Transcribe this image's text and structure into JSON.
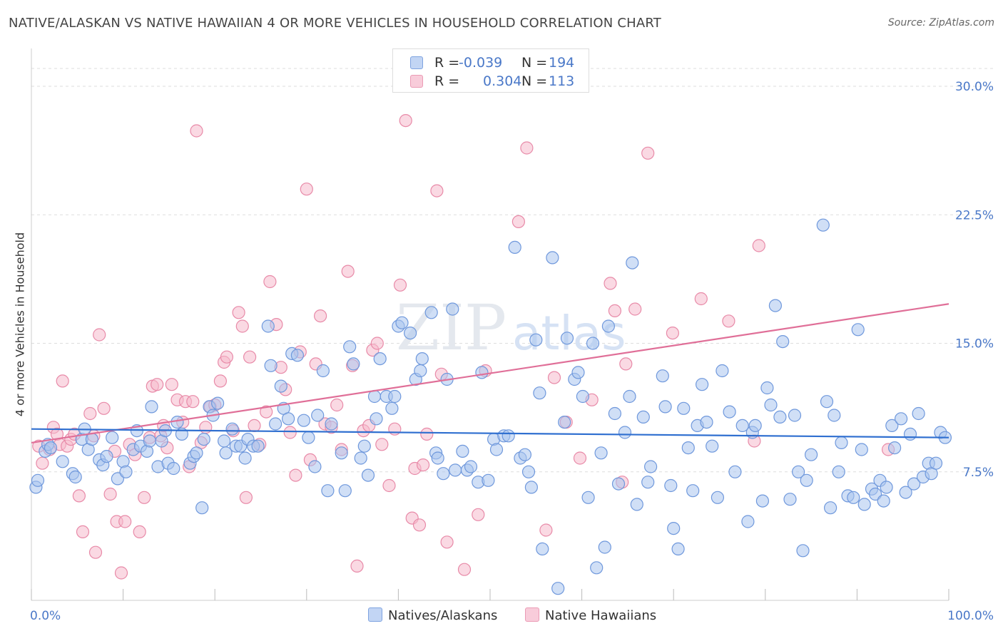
{
  "title": "NATIVE/ALASKAN VS NATIVE HAWAIIAN 4 OR MORE VEHICLES IN HOUSEHOLD CORRELATION CHART",
  "source": "Source: ZipAtlas.com",
  "watermark": "ZIPatlas",
  "colors": {
    "blue_fill": "#aac4ef",
    "blue_stroke": "#6f98dc",
    "blue_line": "#2f6fd0",
    "pink_fill": "#f5b9cc",
    "pink_stroke": "#e88aa8",
    "pink_line": "#e06f98",
    "tick_text": "#4a78c8",
    "grid": "#dddddd"
  },
  "legend": {
    "rows": [
      {
        "r_label": "R =",
        "r_value": "-0.039",
        "n_label": "N =",
        "n_value": "194"
      },
      {
        "r_label": "R =",
        "r_value": "0.304",
        "n_label": "N =",
        "n_value": "113"
      }
    ]
  },
  "bottom_legend": [
    "Natives/Alaskans",
    "Native Hawaiians"
  ],
  "chart_data": {
    "type": "scatter",
    "title": "NATIVE/ALASKAN VS NATIVE HAWAIIAN 4 OR MORE VEHICLES IN HOUSEHOLD CORRELATION CHART",
    "xlabel": "",
    "ylabel": "4 or more Vehicles in Household",
    "xlim": [
      0,
      100
    ],
    "ylim": [
      0,
      31
    ],
    "x_tick_labels": [
      "0.0%",
      "100.0%"
    ],
    "y_ticks": [
      7.5,
      15.0,
      22.5,
      30.0
    ],
    "y_tick_labels": [
      "7.5%",
      "15.0%",
      "22.5%",
      "30.0%"
    ],
    "grid": true,
    "legend_position": "top-center",
    "series": [
      {
        "name": "Natives/Alaskans",
        "r": -0.039,
        "n": 194,
        "trend": {
          "x": [
            0,
            100
          ],
          "y": [
            10.0,
            9.5
          ]
        },
        "points": [
          [
            0.5,
            6.6
          ],
          [
            0.7,
            7.0
          ],
          [
            1.5,
            8.7
          ],
          [
            1.8,
            9.1
          ],
          [
            2.1,
            8.9
          ],
          [
            3.4,
            8.1
          ],
          [
            4.5,
            7.4
          ],
          [
            4.8,
            7.2
          ],
          [
            5.5,
            9.4
          ],
          [
            5.8,
            10.0
          ],
          [
            6.2,
            8.8
          ],
          [
            6.6,
            9.4
          ],
          [
            7.4,
            8.2
          ],
          [
            7.8,
            7.9
          ],
          [
            8.2,
            8.4
          ],
          [
            8.8,
            9.5
          ],
          [
            9.4,
            7.1
          ],
          [
            10.0,
            8.1
          ],
          [
            10.3,
            7.5
          ],
          [
            11.1,
            8.8
          ],
          [
            11.5,
            9.9
          ],
          [
            11.9,
            9.0
          ],
          [
            12.6,
            8.7
          ],
          [
            12.9,
            9.3
          ],
          [
            13.1,
            11.3
          ],
          [
            13.8,
            7.8
          ],
          [
            14.2,
            9.3
          ],
          [
            14.6,
            9.9
          ],
          [
            14.9,
            8.0
          ],
          [
            15.5,
            7.7
          ],
          [
            15.9,
            10.4
          ],
          [
            16.4,
            9.7
          ],
          [
            17.3,
            8.0
          ],
          [
            17.7,
            8.4
          ],
          [
            18.0,
            8.6
          ],
          [
            18.6,
            5.4
          ],
          [
            18.8,
            9.4
          ],
          [
            19.4,
            11.3
          ],
          [
            19.8,
            10.8
          ],
          [
            20.3,
            11.5
          ],
          [
            21.0,
            9.3
          ],
          [
            21.2,
            8.6
          ],
          [
            21.9,
            10.0
          ],
          [
            22.3,
            9.0
          ],
          [
            22.8,
            9.0
          ],
          [
            23.3,
            8.3
          ],
          [
            23.6,
            9.4
          ],
          [
            24.2,
            9.0
          ],
          [
            24.7,
            9.0
          ],
          [
            25.8,
            16.0
          ],
          [
            26.1,
            13.7
          ],
          [
            26.6,
            10.3
          ],
          [
            27.2,
            12.5
          ],
          [
            27.5,
            11.2
          ],
          [
            28.0,
            10.6
          ],
          [
            28.4,
            14.4
          ],
          [
            29.0,
            14.3
          ],
          [
            29.7,
            10.5
          ],
          [
            30.2,
            9.5
          ],
          [
            30.9,
            7.8
          ],
          [
            31.2,
            10.8
          ],
          [
            31.8,
            13.4
          ],
          [
            32.3,
            6.4
          ],
          [
            32.7,
            10.3
          ],
          [
            33.8,
            8.6
          ],
          [
            34.2,
            6.4
          ],
          [
            34.7,
            14.8
          ],
          [
            35.1,
            13.8
          ],
          [
            35.9,
            8.3
          ],
          [
            36.3,
            9.0
          ],
          [
            36.7,
            7.3
          ],
          [
            37.4,
            11.9
          ],
          [
            37.6,
            10.6
          ],
          [
            38.0,
            14.1
          ],
          [
            38.7,
            11.9
          ],
          [
            39.3,
            11.2
          ],
          [
            39.6,
            11.9
          ],
          [
            40.0,
            16.0
          ],
          [
            40.4,
            16.2
          ],
          [
            41.3,
            15.6
          ],
          [
            41.9,
            12.9
          ],
          [
            42.4,
            13.4
          ],
          [
            42.6,
            14.1
          ],
          [
            43.6,
            16.8
          ],
          [
            44.1,
            8.6
          ],
          [
            44.3,
            8.3
          ],
          [
            44.9,
            7.4
          ],
          [
            45.3,
            12.9
          ],
          [
            45.9,
            17.0
          ],
          [
            46.2,
            7.6
          ],
          [
            47.0,
            8.7
          ],
          [
            47.5,
            7.6
          ],
          [
            47.9,
            7.8
          ],
          [
            48.7,
            6.9
          ],
          [
            49.1,
            13.3
          ],
          [
            49.8,
            7.0
          ],
          [
            50.4,
            9.4
          ],
          [
            50.7,
            8.8
          ],
          [
            51.5,
            9.6
          ],
          [
            52.0,
            9.6
          ],
          [
            52.7,
            20.6
          ],
          [
            53.3,
            8.3
          ],
          [
            53.8,
            8.5
          ],
          [
            54.2,
            7.5
          ],
          [
            54.5,
            6.6
          ],
          [
            55.0,
            15.2
          ],
          [
            55.4,
            12.1
          ],
          [
            55.7,
            3.0
          ],
          [
            56.8,
            20.0
          ],
          [
            57.4,
            0.7
          ],
          [
            58.1,
            10.4
          ],
          [
            58.4,
            15.3
          ],
          [
            59.2,
            12.9
          ],
          [
            59.6,
            13.3
          ],
          [
            60.1,
            11.9
          ],
          [
            60.7,
            6.0
          ],
          [
            61.2,
            15.0
          ],
          [
            61.6,
            1.9
          ],
          [
            62.1,
            8.6
          ],
          [
            62.5,
            3.1
          ],
          [
            62.9,
            16.0
          ],
          [
            63.6,
            10.9
          ],
          [
            64.0,
            6.8
          ],
          [
            64.7,
            9.8
          ],
          [
            65.2,
            11.9
          ],
          [
            65.5,
            19.7
          ],
          [
            66.0,
            5.6
          ],
          [
            66.7,
            10.7
          ],
          [
            67.2,
            6.9
          ],
          [
            67.5,
            7.8
          ],
          [
            68.8,
            13.1
          ],
          [
            69.1,
            11.3
          ],
          [
            69.7,
            6.7
          ],
          [
            70.0,
            4.2
          ],
          [
            70.5,
            3.0
          ],
          [
            71.1,
            11.2
          ],
          [
            71.6,
            8.9
          ],
          [
            72.1,
            6.4
          ],
          [
            72.6,
            10.2
          ],
          [
            73.1,
            12.6
          ],
          [
            73.6,
            10.4
          ],
          [
            74.2,
            9.0
          ],
          [
            74.8,
            6.0
          ],
          [
            75.3,
            13.4
          ],
          [
            76.1,
            11.0
          ],
          [
            76.7,
            7.5
          ],
          [
            77.5,
            10.2
          ],
          [
            78.1,
            4.6
          ],
          [
            78.6,
            9.8
          ],
          [
            78.9,
            10.2
          ],
          [
            79.7,
            5.8
          ],
          [
            80.2,
            12.4
          ],
          [
            80.6,
            11.4
          ],
          [
            81.1,
            17.2
          ],
          [
            81.6,
            10.7
          ],
          [
            81.9,
            15.1
          ],
          [
            82.7,
            5.9
          ],
          [
            83.2,
            10.8
          ],
          [
            83.6,
            7.5
          ],
          [
            84.1,
            2.9
          ],
          [
            84.5,
            7.0
          ],
          [
            85.0,
            8.5
          ],
          [
            86.3,
            21.9
          ],
          [
            86.7,
            11.6
          ],
          [
            87.1,
            5.4
          ],
          [
            87.5,
            10.8
          ],
          [
            88.0,
            7.5
          ],
          [
            88.3,
            9.2
          ],
          [
            89.0,
            6.1
          ],
          [
            89.6,
            6.0
          ],
          [
            90.1,
            15.8
          ],
          [
            90.5,
            8.8
          ],
          [
            90.8,
            5.6
          ],
          [
            91.6,
            6.5
          ],
          [
            92.0,
            6.2
          ],
          [
            92.5,
            7.0
          ],
          [
            92.9,
            5.8
          ],
          [
            93.2,
            6.6
          ],
          [
            93.8,
            10.2
          ],
          [
            94.1,
            8.9
          ],
          [
            94.8,
            10.6
          ],
          [
            95.3,
            6.3
          ],
          [
            95.8,
            9.7
          ],
          [
            96.2,
            6.8
          ],
          [
            96.7,
            10.9
          ],
          [
            97.2,
            7.2
          ],
          [
            97.8,
            8.0
          ],
          [
            98.1,
            7.4
          ],
          [
            98.6,
            8.0
          ],
          [
            99.1,
            9.8
          ],
          [
            99.6,
            9.5
          ]
        ]
      },
      {
        "name": "Native Hawaiians",
        "r": 0.304,
        "n": 113,
        "trend": {
          "x": [
            0,
            100
          ],
          "y": [
            9.2,
            17.3
          ]
        },
        "points": [
          [
            0.8,
            9.0
          ],
          [
            1.2,
            8.0
          ],
          [
            2.0,
            8.8
          ],
          [
            2.4,
            10.1
          ],
          [
            2.8,
            9.7
          ],
          [
            3.1,
            9.1
          ],
          [
            3.4,
            12.8
          ],
          [
            3.9,
            9.0
          ],
          [
            4.3,
            9.4
          ],
          [
            4.7,
            9.7
          ],
          [
            5.2,
            6.1
          ],
          [
            5.6,
            4.0
          ],
          [
            6.4,
            10.9
          ],
          [
            6.8,
            9.6
          ],
          [
            7.0,
            2.8
          ],
          [
            7.4,
            15.5
          ],
          [
            7.9,
            11.2
          ],
          [
            8.6,
            6.2
          ],
          [
            9.1,
            8.7
          ],
          [
            9.3,
            4.6
          ],
          [
            9.8,
            1.6
          ],
          [
            10.2,
            4.6
          ],
          [
            10.7,
            9.1
          ],
          [
            11.3,
            8.5
          ],
          [
            11.8,
            4.0
          ],
          [
            12.3,
            6.0
          ],
          [
            12.9,
            9.5
          ],
          [
            13.2,
            12.5
          ],
          [
            13.7,
            12.6
          ],
          [
            14.1,
            9.6
          ],
          [
            14.4,
            10.2
          ],
          [
            14.8,
            8.9
          ],
          [
            15.3,
            12.6
          ],
          [
            15.9,
            11.7
          ],
          [
            16.5,
            10.4
          ],
          [
            16.8,
            11.6
          ],
          [
            17.2,
            7.8
          ],
          [
            17.6,
            11.6
          ],
          [
            18.0,
            27.4
          ],
          [
            18.5,
            9.2
          ],
          [
            19.0,
            10.1
          ],
          [
            19.5,
            11.3
          ],
          [
            20.0,
            11.4
          ],
          [
            20.6,
            12.8
          ],
          [
            21.0,
            13.9
          ],
          [
            21.3,
            14.2
          ],
          [
            22.0,
            9.9
          ],
          [
            22.6,
            16.8
          ],
          [
            23.0,
            16.0
          ],
          [
            23.4,
            6.0
          ],
          [
            23.8,
            14.2
          ],
          [
            24.3,
            10.2
          ],
          [
            24.9,
            9.1
          ],
          [
            25.6,
            11.0
          ],
          [
            26.0,
            18.6
          ],
          [
            26.7,
            16.1
          ],
          [
            27.2,
            13.6
          ],
          [
            27.7,
            12.3
          ],
          [
            28.2,
            9.8
          ],
          [
            28.8,
            7.3
          ],
          [
            29.3,
            14.5
          ],
          [
            30.0,
            24.0
          ],
          [
            30.4,
            8.2
          ],
          [
            31.0,
            13.8
          ],
          [
            31.5,
            16.6
          ],
          [
            32.0,
            10.3
          ],
          [
            32.7,
            10.1
          ],
          [
            33.3,
            11.4
          ],
          [
            33.8,
            8.8
          ],
          [
            34.5,
            19.2
          ],
          [
            35.0,
            13.7
          ],
          [
            35.5,
            2.0
          ],
          [
            36.2,
            9.9
          ],
          [
            36.8,
            10.2
          ],
          [
            37.2,
            14.6
          ],
          [
            37.7,
            15.0
          ],
          [
            38.2,
            9.1
          ],
          [
            39.0,
            6.7
          ],
          [
            39.6,
            10.0
          ],
          [
            40.2,
            18.4
          ],
          [
            40.8,
            28.0
          ],
          [
            41.5,
            4.8
          ],
          [
            41.8,
            7.7
          ],
          [
            42.3,
            4.4
          ],
          [
            42.7,
            7.9
          ],
          [
            43.1,
            9.7
          ],
          [
            44.2,
            23.9
          ],
          [
            44.7,
            13.2
          ],
          [
            45.3,
            3.4
          ],
          [
            47.2,
            1.8
          ],
          [
            48.7,
            5.0
          ],
          [
            49.5,
            13.4
          ],
          [
            53.1,
            22.1
          ],
          [
            54.0,
            26.4
          ],
          [
            56.1,
            4.1
          ],
          [
            57.0,
            13.0
          ],
          [
            58.3,
            10.4
          ],
          [
            59.8,
            8.3
          ],
          [
            61.1,
            11.7
          ],
          [
            63.1,
            18.5
          ],
          [
            63.6,
            16.9
          ],
          [
            64.4,
            6.9
          ],
          [
            64.8,
            13.8
          ],
          [
            65.8,
            17.0
          ],
          [
            67.2,
            26.1
          ],
          [
            69.9,
            15.6
          ],
          [
            73.0,
            17.6
          ],
          [
            76.0,
            16.3
          ],
          [
            78.8,
            9.3
          ],
          [
            79.3,
            20.7
          ],
          [
            93.4,
            8.8
          ]
        ]
      }
    ]
  }
}
